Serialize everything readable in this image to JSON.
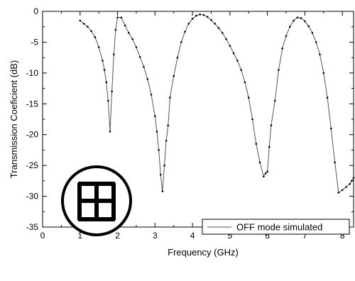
{
  "chart_data": {
    "type": "line",
    "title": "",
    "xlabel": "Frequency (GHz)",
    "ylabel": "Transmission Coeficient (dB)",
    "xlim": [
      0,
      8.3
    ],
    "ylim": [
      -35,
      0
    ],
    "xticks": [
      0,
      1,
      2,
      3,
      4,
      5,
      6,
      7,
      8
    ],
    "yticks": [
      0,
      -5,
      -10,
      -15,
      -20,
      -25,
      -30,
      -35
    ],
    "grid": false,
    "legend_position": "bottom-right",
    "legend_box": true,
    "markers": "small-dots",
    "line_color": "#555555",
    "marker_color": "#000000",
    "inset_symbol": "cross-with-end-bars-in-circle",
    "series": [
      {
        "name": "OFF mode simulated",
        "x": [
          1.0,
          1.1,
          1.2,
          1.3,
          1.4,
          1.5,
          1.6,
          1.65,
          1.7,
          1.75,
          1.8,
          1.85,
          1.9,
          1.95,
          2.0,
          2.1,
          2.2,
          2.3,
          2.4,
          2.5,
          2.6,
          2.7,
          2.8,
          2.9,
          3.0,
          3.05,
          3.1,
          3.15,
          3.2,
          3.25,
          3.3,
          3.35,
          3.4,
          3.5,
          3.6,
          3.7,
          3.8,
          3.9,
          4.0,
          4.1,
          4.2,
          4.3,
          4.4,
          4.5,
          4.6,
          4.7,
          4.8,
          4.9,
          5.0,
          5.1,
          5.2,
          5.3,
          5.4,
          5.5,
          5.6,
          5.7,
          5.8,
          5.9,
          5.95,
          6.0,
          6.05,
          6.1,
          6.2,
          6.3,
          6.4,
          6.5,
          6.6,
          6.7,
          6.8,
          6.9,
          7.0,
          7.1,
          7.2,
          7.3,
          7.4,
          7.5,
          7.6,
          7.7,
          7.8,
          7.9,
          8.0,
          8.1,
          8.2,
          8.25,
          8.3
        ],
        "y": [
          -1.5,
          -2.0,
          -2.5,
          -3.2,
          -4.2,
          -5.8,
          -8.0,
          -9.5,
          -11.5,
          -14.5,
          -19.5,
          -13.0,
          -7.0,
          -3.0,
          -1.0,
          -1.0,
          -2.3,
          -3.5,
          -4.5,
          -5.8,
          -7.4,
          -9.0,
          -11.0,
          -13.5,
          -17.0,
          -19.5,
          -22.5,
          -26.5,
          -29.2,
          -25.0,
          -21.0,
          -18.5,
          -14.0,
          -10.5,
          -7.5,
          -5.0,
          -3.3,
          -2.0,
          -1.2,
          -0.7,
          -0.5,
          -0.6,
          -0.9,
          -1.4,
          -2.0,
          -2.7,
          -3.5,
          -4.5,
          -5.6,
          -6.8,
          -8.0,
          -9.5,
          -11.5,
          -14.0,
          -17.5,
          -21.5,
          -24.5,
          -26.8,
          -26.3,
          -26.0,
          -22.0,
          -18.5,
          -14.5,
          -9.5,
          -6.0,
          -4.0,
          -2.5,
          -1.5,
          -1.0,
          -1.1,
          -1.6,
          -2.4,
          -3.5,
          -5.0,
          -7.0,
          -10.0,
          -14.0,
          -19.0,
          -24.5,
          -29.4,
          -29.0,
          -28.5,
          -28.0,
          -27.5,
          -27.0
        ]
      }
    ]
  }
}
